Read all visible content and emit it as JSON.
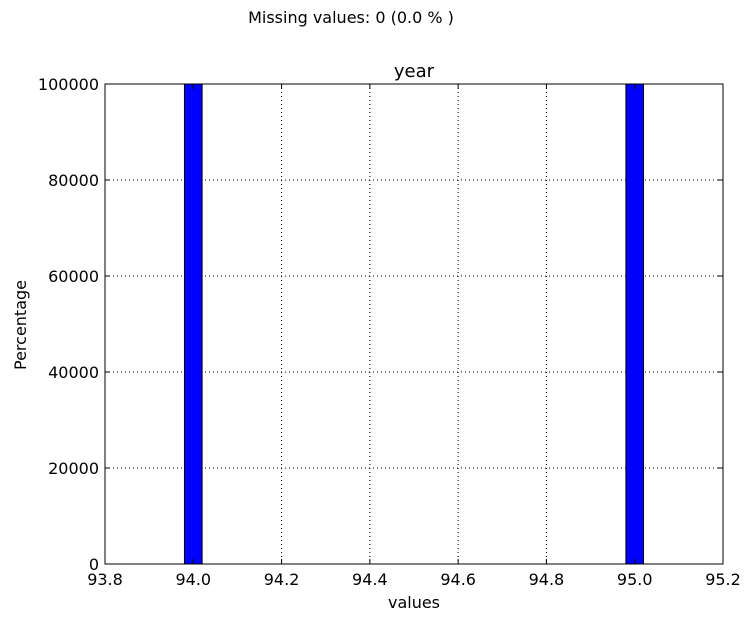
{
  "header": {
    "missing_text": "Missing values: 0 (0.0 % )"
  },
  "chart_data": {
    "type": "bar",
    "title": "year",
    "xlabel": "values",
    "ylabel": "Percentage",
    "xlim": [
      93.8,
      95.2
    ],
    "ylim": [
      0,
      100000
    ],
    "x_ticks": [
      93.8,
      94.0,
      94.2,
      94.4,
      94.6,
      94.8,
      95.0,
      95.2
    ],
    "x_tick_labels": [
      "93.8",
      "94.0",
      "94.2",
      "94.4",
      "94.6",
      "94.8",
      "95.0",
      "95.2"
    ],
    "y_ticks": [
      0,
      20000,
      40000,
      60000,
      80000,
      100000
    ],
    "y_tick_labels": [
      "0",
      "20000",
      "40000",
      "60000",
      "80000",
      "100000"
    ],
    "grid": true,
    "bar_color": "#0000ff",
    "bars": [
      {
        "x_start": 93.98,
        "x_end": 94.02,
        "value": 100000
      },
      {
        "x_start": 94.98,
        "x_end": 95.02,
        "value": 100000
      }
    ]
  }
}
